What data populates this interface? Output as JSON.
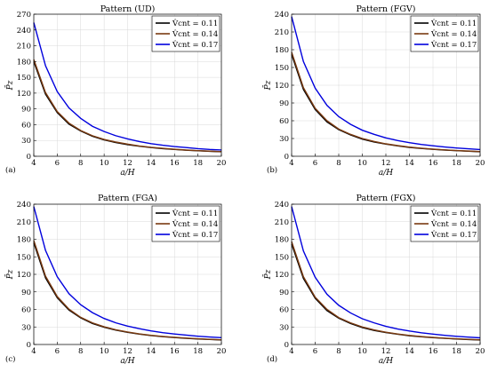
{
  "colors": {
    "series_black": "#000000",
    "series_brown": "#7a3a10",
    "series_blue": "#0000dd"
  },
  "chart_data": [
    {
      "type": "line",
      "panel_tag": "(a)",
      "title": "Pattern (UD)",
      "xlabel": "a/H",
      "ylabel": "P̄z",
      "xlim": [
        4,
        20
      ],
      "ylim": [
        0,
        270
      ],
      "xticks": [
        4,
        6,
        8,
        10,
        12,
        14,
        16,
        18,
        20
      ],
      "yticks": [
        0,
        30,
        60,
        90,
        120,
        150,
        180,
        210,
        240,
        270
      ],
      "grid": true,
      "legend_position": "top-right",
      "x": [
        4,
        5,
        6,
        7,
        8,
        9,
        10,
        11,
        12,
        13,
        14,
        15,
        16,
        17,
        18,
        19,
        20
      ],
      "series": [
        {
          "name": "V̂cnt = 0.11",
          "color": "#000000",
          "values": [
            180,
            118,
            83,
            61,
            48,
            38,
            31,
            26,
            22,
            19,
            16.5,
            14.5,
            13,
            11.5,
            10.5,
            9.5,
            8.5
          ]
        },
        {
          "name": "V̂cnt = 0.14",
          "color": "#7a3a10",
          "values": [
            184,
            121,
            85,
            63,
            49,
            39,
            32,
            27,
            23,
            19.5,
            17,
            15,
            13.3,
            11.8,
            10.7,
            9.7,
            8.8
          ]
        },
        {
          "name": "V̂cnt = 0.17",
          "color": "#0000dd",
          "values": [
            254,
            172,
            123,
            92,
            72,
            57,
            47,
            39,
            33,
            28,
            24,
            21,
            18.5,
            16.5,
            14.5,
            13,
            12
          ]
        }
      ]
    },
    {
      "type": "line",
      "panel_tag": "(b)",
      "title": "Pattern (FGV)",
      "xlabel": "a/H",
      "ylabel": "P̄z",
      "xlim": [
        4,
        20
      ],
      "ylim": [
        0,
        240
      ],
      "xticks": [
        4,
        6,
        8,
        10,
        12,
        14,
        16,
        18,
        20
      ],
      "yticks": [
        0,
        30,
        60,
        90,
        120,
        150,
        180,
        210,
        240
      ],
      "grid": true,
      "legend_position": "top-right",
      "x": [
        4,
        5,
        6,
        7,
        8,
        9,
        10,
        11,
        12,
        13,
        14,
        15,
        16,
        17,
        18,
        19,
        20
      ],
      "series": [
        {
          "name": "V̂cnt = 0.11",
          "color": "#000000",
          "values": [
            172,
            113,
            79,
            58,
            45,
            36,
            29,
            24,
            20.5,
            17.5,
            15,
            13.2,
            11.7,
            10.5,
            9.4,
            8.5,
            7.7
          ]
        },
        {
          "name": "V̂cnt = 0.14",
          "color": "#7a3a10",
          "values": [
            176,
            116,
            81,
            60,
            46,
            37,
            30,
            25,
            21,
            18,
            15.5,
            13.6,
            12,
            10.8,
            9.7,
            8.8,
            8
          ]
        },
        {
          "name": "V̂cnt = 0.17",
          "color": "#0000dd",
          "values": [
            236,
            160,
            115,
            86,
            67,
            54,
            44,
            37,
            31,
            26.5,
            23,
            20,
            17.7,
            15.7,
            14,
            12.6,
            11.4
          ]
        }
      ]
    },
    {
      "type": "line",
      "panel_tag": "(c)",
      "title": "Pattern (FGA)",
      "xlabel": "a/H",
      "ylabel": "P̄z",
      "xlim": [
        4,
        20
      ],
      "ylim": [
        0,
        240
      ],
      "xticks": [
        4,
        6,
        8,
        10,
        12,
        14,
        16,
        18,
        20
      ],
      "yticks": [
        0,
        30,
        60,
        90,
        120,
        150,
        180,
        210,
        240
      ],
      "grid": true,
      "legend_position": "top-right",
      "x": [
        4,
        5,
        6,
        7,
        8,
        9,
        10,
        11,
        12,
        13,
        14,
        15,
        16,
        17,
        18,
        19,
        20
      ],
      "series": [
        {
          "name": "V̂cnt = 0.11",
          "color": "#000000",
          "values": [
            174,
            114,
            80,
            59,
            45.5,
            36,
            29.5,
            24.5,
            20.8,
            17.8,
            15.3,
            13.4,
            11.8,
            10.6,
            9.5,
            8.6,
            7.8
          ]
        },
        {
          "name": "V̂cnt = 0.14",
          "color": "#7a3a10",
          "values": [
            178,
            117,
            82,
            60.5,
            46.5,
            37,
            30.3,
            25.2,
            21.3,
            18.2,
            15.7,
            13.8,
            12.2,
            10.9,
            9.8,
            8.9,
            8.1
          ]
        },
        {
          "name": "V̂cnt = 0.17",
          "color": "#0000dd",
          "values": [
            236,
            161,
            116,
            87,
            68,
            54.5,
            44.5,
            37,
            31.5,
            27,
            23.3,
            20.3,
            18,
            16,
            14.2,
            12.8,
            11.6
          ]
        }
      ]
    },
    {
      "type": "line",
      "panel_tag": "(d)",
      "title": "Pattern (FGX)",
      "xlabel": "a/H",
      "ylabel": "P̄z",
      "xlim": [
        4,
        20
      ],
      "ylim": [
        0,
        240
      ],
      "xticks": [
        4,
        6,
        8,
        10,
        12,
        14,
        16,
        18,
        20
      ],
      "yticks": [
        0,
        30,
        60,
        90,
        120,
        150,
        180,
        210,
        240
      ],
      "grid": true,
      "legend_position": "top-right",
      "x": [
        4,
        5,
        6,
        7,
        8,
        9,
        10,
        11,
        12,
        13,
        14,
        15,
        16,
        17,
        18,
        19,
        20
      ],
      "series": [
        {
          "name": "V̂cnt = 0.11",
          "color": "#000000",
          "values": [
            172,
            113,
            79,
            58,
            45,
            36,
            29,
            24,
            20.5,
            17.5,
            15,
            13.2,
            11.7,
            10.5,
            9.4,
            8.5,
            7.7
          ]
        },
        {
          "name": "V̂cnt = 0.14",
          "color": "#7a3a10",
          "values": [
            176,
            116,
            81,
            60,
            46,
            37,
            30,
            25,
            21,
            18,
            15.5,
            13.6,
            12,
            10.8,
            9.7,
            8.8,
            8
          ]
        },
        {
          "name": "V̂cnt = 0.17",
          "color": "#0000dd",
          "values": [
            236,
            160,
            115,
            86,
            67,
            54,
            44,
            37,
            31,
            26.5,
            23,
            20,
            17.7,
            15.7,
            14,
            12.6,
            11.4
          ]
        }
      ]
    }
  ]
}
